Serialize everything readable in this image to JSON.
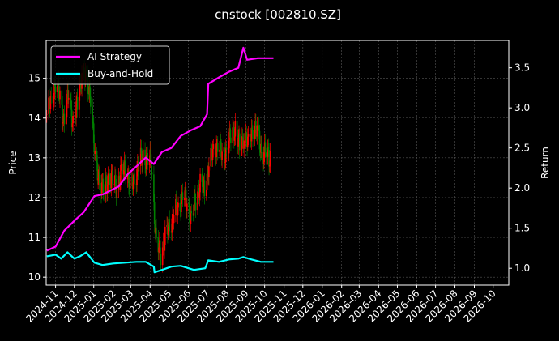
{
  "chart_data": {
    "type": "line",
    "title": "cnstock [002810.SZ]",
    "ylabel_left": "Price",
    "ylabel_right": "Return",
    "xlabel": "",
    "grid": true,
    "legend_position": "top-left",
    "ylim_left": [
      9.8,
      15.95
    ],
    "ylim_right": [
      0.79,
      3.84
    ],
    "xlim": [
      "2024-10-17",
      "2026-10-26"
    ],
    "left_ticks": [
      10,
      11,
      12,
      13,
      14,
      15
    ],
    "right_ticks": [
      1.0,
      1.5,
      2.0,
      2.5,
      3.0,
      3.5
    ],
    "x_ticks": [
      "2024-11",
      "2024-12",
      "2025-01",
      "2025-02",
      "2025-03",
      "2025-04",
      "2025-05",
      "2025-06",
      "2025-07",
      "2025-08",
      "2025-09",
      "2025-10",
      "2025-11",
      "2025-12",
      "2026-01",
      "2026-02",
      "2026-03",
      "2026-04",
      "2026-05",
      "2026-06",
      "2026-07",
      "2026-08",
      "2026-09",
      "2026-10"
    ],
    "colors": {
      "background": "#000000",
      "ai_strategy": "#ff00ff",
      "buy_and_hold": "#00ffff",
      "candle_up": "#ff0000",
      "candle_down": "#008000",
      "grid": "#555555",
      "axes": "#ffffff"
    },
    "series": [
      {
        "name": "AI Strategy",
        "axis": "right",
        "points": [
          [
            "2024-10-18",
            1.22
          ],
          [
            "2024-11-01",
            1.27
          ],
          [
            "2024-11-15",
            1.47
          ],
          [
            "2024-12-02",
            1.6
          ],
          [
            "2024-12-16",
            1.7
          ],
          [
            "2025-01-02",
            1.9
          ],
          [
            "2025-01-15",
            1.92
          ],
          [
            "2025-02-10",
            2.02
          ],
          [
            "2025-02-25",
            2.18
          ],
          [
            "2025-03-10",
            2.27
          ],
          [
            "2025-03-25",
            2.38
          ],
          [
            "2025-04-07",
            2.3
          ],
          [
            "2025-04-20",
            2.45
          ],
          [
            "2025-05-05",
            2.5
          ],
          [
            "2025-05-20",
            2.65
          ],
          [
            "2025-06-05",
            2.72
          ],
          [
            "2025-06-20",
            2.77
          ],
          [
            "2025-07-01",
            2.92
          ],
          [
            "2025-07-03",
            3.3
          ],
          [
            "2025-07-20",
            3.38
          ],
          [
            "2025-08-05",
            3.45
          ],
          [
            "2025-08-20",
            3.5
          ],
          [
            "2025-08-28",
            3.75
          ],
          [
            "2025-09-03",
            3.6
          ],
          [
            "2025-09-20",
            3.62
          ],
          [
            "2025-10-05",
            3.62
          ],
          [
            "2025-10-15",
            3.62
          ]
        ]
      },
      {
        "name": "Buy-and-Hold",
        "axis": "right",
        "points": [
          [
            "2024-10-18",
            1.15
          ],
          [
            "2024-11-01",
            1.17
          ],
          [
            "2024-11-10",
            1.12
          ],
          [
            "2024-11-20",
            1.2
          ],
          [
            "2024-12-01",
            1.12
          ],
          [
            "2024-12-10",
            1.15
          ],
          [
            "2024-12-20",
            1.2
          ],
          [
            "2025-01-02",
            1.07
          ],
          [
            "2025-01-15",
            1.04
          ],
          [
            "2025-02-01",
            1.06
          ],
          [
            "2025-02-20",
            1.07
          ],
          [
            "2025-03-10",
            1.08
          ],
          [
            "2025-03-25",
            1.08
          ],
          [
            "2025-04-07",
            1.02
          ],
          [
            "2025-04-08",
            0.95
          ],
          [
            "2025-04-20",
            0.98
          ],
          [
            "2025-05-05",
            1.02
          ],
          [
            "2025-05-20",
            1.03
          ],
          [
            "2025-06-10",
            0.98
          ],
          [
            "2025-06-28",
            1.0
          ],
          [
            "2025-07-03",
            1.1
          ],
          [
            "2025-07-20",
            1.08
          ],
          [
            "2025-08-05",
            1.11
          ],
          [
            "2025-08-20",
            1.12
          ],
          [
            "2025-08-28",
            1.14
          ],
          [
            "2025-09-10",
            1.11
          ],
          [
            "2025-09-25",
            1.08
          ],
          [
            "2025-10-15",
            1.08
          ]
        ]
      }
    ],
    "candles": {
      "axis": "left",
      "closes": [
        [
          "2024-10-18",
          14.1
        ],
        [
          "2024-10-25",
          14.4
        ],
        [
          "2024-11-01",
          14.9
        ],
        [
          "2024-11-08",
          14.5
        ],
        [
          "2024-11-15",
          13.9
        ],
        [
          "2024-11-22",
          14.6
        ],
        [
          "2024-11-29",
          13.9
        ],
        [
          "2024-12-06",
          14.3
        ],
        [
          "2024-12-13",
          15.2
        ],
        [
          "2024-12-20",
          14.9
        ],
        [
          "2024-12-27",
          14.6
        ],
        [
          "2025-01-03",
          12.9
        ],
        [
          "2025-01-10",
          12.5
        ],
        [
          "2025-01-17",
          12.1
        ],
        [
          "2025-01-24",
          12.5
        ],
        [
          "2025-02-07",
          12.3
        ],
        [
          "2025-02-14",
          12.6
        ],
        [
          "2025-02-21",
          12.8
        ],
        [
          "2025-02-28",
          12.2
        ],
        [
          "2025-03-07",
          12.5
        ],
        [
          "2025-03-14",
          12.8
        ],
        [
          "2025-03-21",
          13.1
        ],
        [
          "2025-03-28",
          12.9
        ],
        [
          "2025-04-03",
          12.9
        ],
        [
          "2025-04-07",
          11.8
        ],
        [
          "2025-04-11",
          10.8
        ],
        [
          "2025-04-18",
          10.6
        ],
        [
          "2025-04-25",
          11.0
        ],
        [
          "2025-04-30",
          11.2
        ],
        [
          "2025-05-09",
          11.6
        ],
        [
          "2025-05-16",
          11.7
        ],
        [
          "2025-05-23",
          12.1
        ],
        [
          "2025-05-30",
          11.8
        ],
        [
          "2025-06-06",
          11.5
        ],
        [
          "2025-06-13",
          11.9
        ],
        [
          "2025-06-20",
          12.4
        ],
        [
          "2025-06-27",
          12.1
        ],
        [
          "2025-07-04",
          12.9
        ],
        [
          "2025-07-11",
          13.1
        ],
        [
          "2025-07-18",
          13.4
        ],
        [
          "2025-07-25",
          13.0
        ],
        [
          "2025-08-01",
          13.2
        ],
        [
          "2025-08-08",
          13.5
        ],
        [
          "2025-08-15",
          13.8
        ],
        [
          "2025-08-22",
          13.2
        ],
        [
          "2025-08-29",
          13.6
        ],
        [
          "2025-09-05",
          13.3
        ],
        [
          "2025-09-12",
          13.8
        ],
        [
          "2025-09-19",
          13.6
        ],
        [
          "2025-09-26",
          13.2
        ],
        [
          "2025-10-09",
          13.0
        ],
        [
          "2025-10-13",
          13.3
        ]
      ]
    }
  }
}
